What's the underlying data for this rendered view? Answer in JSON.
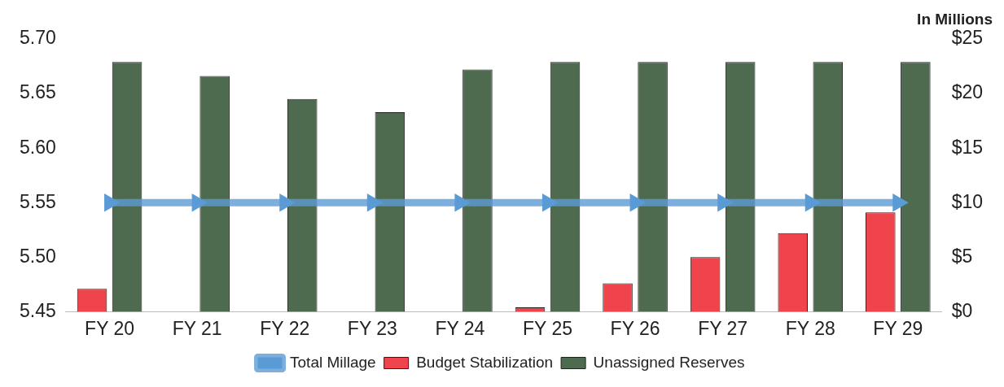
{
  "chart_data": {
    "type": "bar",
    "y2label": "In Millions",
    "categories": [
      "FY 20",
      "FY 21",
      "FY 22",
      "FY 23",
      "FY 24",
      "FY 25",
      "FY 26",
      "FY 27",
      "FY 28",
      "FY 29"
    ],
    "series": [
      {
        "name": "Budget Stabilization",
        "color": "#f0444c",
        "axis": "y2",
        "values": [
          2.1,
          null,
          null,
          null,
          null,
          0.4,
          2.6,
          5.0,
          7.2,
          9.1
        ]
      },
      {
        "name": "Unassigned Reserves",
        "color": "#4f6b4f",
        "axis": "y2",
        "values": [
          22.9,
          21.6,
          19.5,
          18.3,
          22.2,
          22.9,
          22.9,
          22.9,
          22.9,
          22.9
        ]
      },
      {
        "name": "Total Millage",
        "type": "line",
        "color": "#5b9bd5",
        "axis": "y",
        "marker": "triangle",
        "values": [
          5.55,
          5.55,
          5.55,
          5.55,
          5.55,
          5.55,
          5.55,
          5.55,
          5.55,
          5.55
        ]
      }
    ],
    "ylim": [
      5.45,
      5.7
    ],
    "yticks": [
      5.45,
      {
        "value": 5.5,
        "label": "5.50"
      },
      5.55,
      {
        "value": 5.6,
        "label": "5.60"
      },
      5.65,
      {
        "value": 5.7,
        "label": "5.70"
      }
    ],
    "y2lim": [
      0,
      25
    ],
    "y2ticks": [
      {
        "value": 0,
        "label": "$0"
      },
      {
        "value": 5,
        "label": "$5"
      },
      {
        "value": 10,
        "label": "$10"
      },
      {
        "value": 15,
        "label": "$15"
      },
      {
        "value": 20,
        "label": "$20"
      },
      {
        "value": 25,
        "label": "$25"
      }
    ],
    "grid": false,
    "legend": "bottom"
  }
}
